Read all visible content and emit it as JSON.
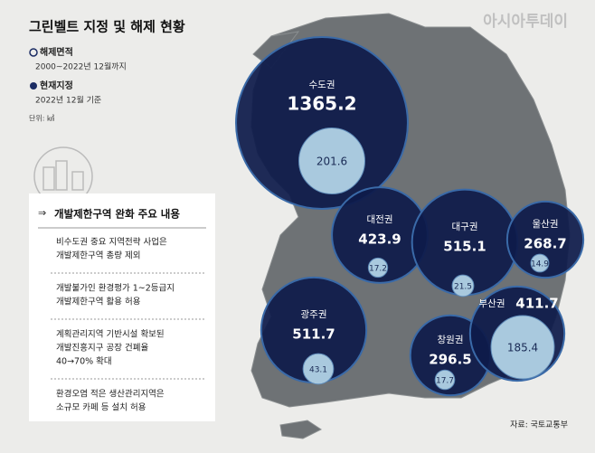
{
  "title": "그린벨트 지정 및 해제 현황",
  "brand": "아시아투데이",
  "legend": [
    {
      "label": "해제면적",
      "note": "2000~2022년 12월까지"
    },
    {
      "label": "현재지정",
      "note": "2022년 12월 기준"
    }
  ],
  "unit": "단위: ㎢",
  "policy": {
    "title": "개발제한구역 완화 주요 내용",
    "items": [
      [
        "비수도권 중요 지역전략 사업은",
        "개발제한구역 총량 제외"
      ],
      [
        "개발불가인 환경평가 1~2등급지",
        "개발제한구역 활용 허용"
      ],
      [
        "계획관리지역 기반시설 확보된",
        "개발진흥지구 공장 건폐율",
        "40→70% 확대"
      ],
      [
        "환경오염 적은 생산관리지역은",
        "소규모 카페 등 설치 허용"
      ]
    ]
  },
  "regions": [
    {
      "name": "수도권",
      "designated": 1365.2,
      "released": 201.6
    },
    {
      "name": "대전권",
      "designated": 423.9,
      "released": 17.2
    },
    {
      "name": "대구권",
      "designated": 515.1,
      "released": 21.5
    },
    {
      "name": "울산권",
      "designated": 268.7,
      "released": 14.9
    },
    {
      "name": "광주권",
      "designated": 511.7,
      "released": 43.1
    },
    {
      "name": "창원권",
      "designated": 296.5,
      "released": 17.7
    },
    {
      "name": "부산권",
      "designated": 411.7,
      "released": 185.4
    }
  ],
  "source": "자료: 국토교통부"
}
